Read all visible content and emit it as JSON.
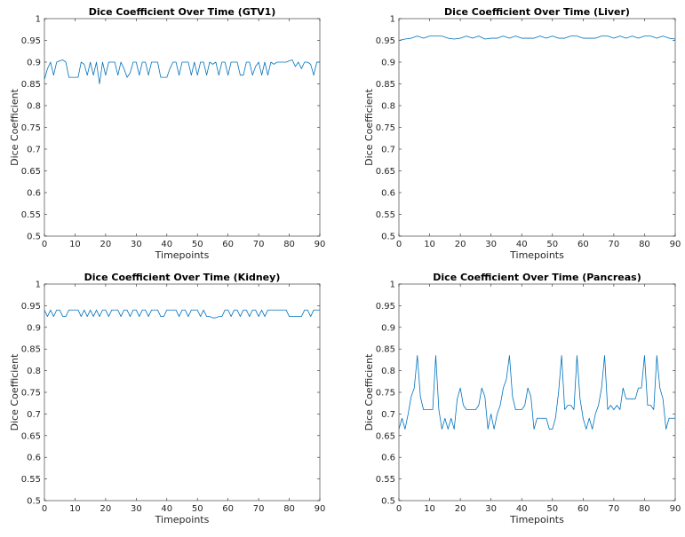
{
  "series_color": "#0072BD",
  "chart_data": [
    {
      "type": "line",
      "title": "Dice Coefficient Over Time (GTV1)",
      "xlabel": "Timepoints",
      "ylabel": "Dice Coefficient",
      "xlim": [
        0,
        90
      ],
      "ylim": [
        0.5,
        1
      ],
      "xticks": [
        "0",
        "10",
        "20",
        "30",
        "40",
        "50",
        "60",
        "70",
        "80",
        "90"
      ],
      "yticks": [
        "0.5",
        "0.55",
        "0.6",
        "0.65",
        "0.7",
        "0.75",
        "0.8",
        "0.85",
        "0.9",
        "0.95",
        "1"
      ],
      "x": [
        0,
        1,
        2,
        3,
        4,
        5,
        6,
        7,
        8,
        9,
        10,
        11,
        12,
        13,
        14,
        15,
        16,
        17,
        18,
        19,
        20,
        21,
        22,
        23,
        24,
        25,
        26,
        27,
        28,
        29,
        30,
        31,
        32,
        33,
        34,
        35,
        36,
        37,
        38,
        39,
        40,
        41,
        42,
        43,
        44,
        45,
        46,
        47,
        48,
        49,
        50,
        51,
        52,
        53,
        54,
        55,
        56,
        57,
        58,
        59,
        60,
        61,
        62,
        63,
        64,
        65,
        66,
        67,
        68,
        69,
        70,
        71,
        72,
        73,
        74,
        75,
        76,
        77,
        78,
        79,
        80,
        81,
        82,
        83,
        84,
        85,
        86,
        87,
        88,
        89,
        90
      ],
      "values": [
        0.86,
        0.885,
        0.9,
        0.87,
        0.9,
        0.903,
        0.905,
        0.9,
        0.865,
        0.865,
        0.865,
        0.865,
        0.9,
        0.895,
        0.87,
        0.9,
        0.87,
        0.9,
        0.85,
        0.9,
        0.87,
        0.9,
        0.9,
        0.9,
        0.87,
        0.9,
        0.885,
        0.865,
        0.875,
        0.9,
        0.9,
        0.87,
        0.9,
        0.9,
        0.87,
        0.9,
        0.9,
        0.9,
        0.865,
        0.865,
        0.865,
        0.885,
        0.9,
        0.9,
        0.87,
        0.9,
        0.9,
        0.9,
        0.87,
        0.9,
        0.87,
        0.9,
        0.9,
        0.87,
        0.9,
        0.895,
        0.9,
        0.87,
        0.9,
        0.9,
        0.87,
        0.9,
        0.9,
        0.9,
        0.87,
        0.87,
        0.9,
        0.9,
        0.87,
        0.89,
        0.9,
        0.87,
        0.9,
        0.87,
        0.9,
        0.895,
        0.9,
        0.9,
        0.9,
        0.9,
        0.903,
        0.905,
        0.89,
        0.9,
        0.885,
        0.9,
        0.9,
        0.895,
        0.87,
        0.9,
        0.9
      ]
    },
    {
      "type": "line",
      "title": "Dice Coefficient Over Time (Liver)",
      "xlabel": "Timepoints",
      "ylabel": "Dice Coefficient",
      "xlim": [
        0,
        90
      ],
      "ylim": [
        0.5,
        1
      ],
      "xticks": [
        "0",
        "10",
        "20",
        "30",
        "40",
        "50",
        "60",
        "70",
        "80",
        "90"
      ],
      "yticks": [
        "0.5",
        "0.55",
        "0.6",
        "0.65",
        "0.7",
        "0.75",
        "0.8",
        "0.85",
        "0.9",
        "0.95",
        "1"
      ],
      "x": [
        0,
        2,
        4,
        6,
        8,
        10,
        12,
        14,
        16,
        18,
        20,
        22,
        24,
        26,
        28,
        30,
        32,
        34,
        36,
        38,
        40,
        42,
        44,
        46,
        48,
        50,
        52,
        54,
        56,
        58,
        60,
        62,
        64,
        66,
        68,
        70,
        72,
        74,
        76,
        78,
        80,
        82,
        84,
        86,
        88,
        90
      ],
      "values": [
        0.95,
        0.953,
        0.955,
        0.96,
        0.955,
        0.96,
        0.96,
        0.96,
        0.955,
        0.953,
        0.955,
        0.96,
        0.955,
        0.96,
        0.953,
        0.955,
        0.955,
        0.96,
        0.955,
        0.96,
        0.955,
        0.955,
        0.955,
        0.96,
        0.955,
        0.96,
        0.955,
        0.955,
        0.96,
        0.96,
        0.955,
        0.955,
        0.955,
        0.96,
        0.96,
        0.955,
        0.96,
        0.955,
        0.96,
        0.955,
        0.96,
        0.96,
        0.955,
        0.96,
        0.955,
        0.953
      ]
    },
    {
      "type": "line",
      "title": "Dice Coefficient Over Time (Kidney)",
      "xlabel": "Timepoints",
      "ylabel": "Dice Coefficient",
      "xlim": [
        0,
        90
      ],
      "ylim": [
        0.5,
        1
      ],
      "xticks": [
        "0",
        "10",
        "20",
        "30",
        "40",
        "50",
        "60",
        "70",
        "80",
        "90"
      ],
      "yticks": [
        "0.5",
        "0.55",
        "0.6",
        "0.65",
        "0.7",
        "0.75",
        "0.8",
        "0.85",
        "0.9",
        "0.95",
        "1"
      ],
      "x": [
        0,
        1,
        2,
        3,
        4,
        5,
        6,
        7,
        8,
        9,
        10,
        11,
        12,
        13,
        14,
        15,
        16,
        17,
        18,
        19,
        20,
        21,
        22,
        23,
        24,
        25,
        26,
        27,
        28,
        29,
        30,
        31,
        32,
        33,
        34,
        35,
        36,
        37,
        38,
        39,
        40,
        41,
        42,
        43,
        44,
        45,
        46,
        47,
        48,
        49,
        50,
        51,
        52,
        53,
        54,
        55,
        56,
        57,
        58,
        59,
        60,
        61,
        62,
        63,
        64,
        65,
        66,
        67,
        68,
        69,
        70,
        71,
        72,
        73,
        74,
        75,
        76,
        77,
        78,
        79,
        80,
        81,
        82,
        83,
        84,
        85,
        86,
        87,
        88,
        89,
        90
      ],
      "values": [
        0.94,
        0.925,
        0.94,
        0.925,
        0.94,
        0.94,
        0.925,
        0.925,
        0.94,
        0.94,
        0.94,
        0.94,
        0.925,
        0.94,
        0.925,
        0.94,
        0.925,
        0.94,
        0.925,
        0.94,
        0.94,
        0.925,
        0.94,
        0.94,
        0.94,
        0.925,
        0.94,
        0.94,
        0.925,
        0.94,
        0.94,
        0.925,
        0.94,
        0.94,
        0.925,
        0.94,
        0.94,
        0.94,
        0.925,
        0.925,
        0.94,
        0.94,
        0.94,
        0.94,
        0.925,
        0.94,
        0.94,
        0.925,
        0.94,
        0.94,
        0.94,
        0.925,
        0.94,
        0.925,
        0.925,
        0.922,
        0.922,
        0.925,
        0.925,
        0.94,
        0.94,
        0.925,
        0.94,
        0.94,
        0.925,
        0.94,
        0.94,
        0.925,
        0.94,
        0.94,
        0.925,
        0.94,
        0.925,
        0.94,
        0.94,
        0.94,
        0.94,
        0.94,
        0.94,
        0.94,
        0.925,
        0.925,
        0.925,
        0.925,
        0.925,
        0.94,
        0.94,
        0.925,
        0.94,
        0.94,
        0.94
      ]
    },
    {
      "type": "line",
      "title": "Dice Coefficient Over Time (Pancreas)",
      "xlabel": "Timepoints",
      "ylabel": "Dice Coefficient",
      "xlim": [
        0,
        90
      ],
      "ylim": [
        0.5,
        1
      ],
      "xticks": [
        "0",
        "10",
        "20",
        "30",
        "40",
        "50",
        "60",
        "70",
        "80",
        "90"
      ],
      "yticks": [
        "0.5",
        "0.55",
        "0.6",
        "0.65",
        "0.7",
        "0.75",
        "0.8",
        "0.85",
        "0.9",
        "0.95",
        "1"
      ],
      "x": [
        0,
        1,
        2,
        3,
        4,
        5,
        6,
        7,
        8,
        9,
        10,
        11,
        12,
        13,
        14,
        15,
        16,
        17,
        18,
        19,
        20,
        21,
        22,
        23,
        24,
        25,
        26,
        27,
        28,
        29,
        30,
        31,
        32,
        33,
        34,
        35,
        36,
        37,
        38,
        39,
        40,
        41,
        42,
        43,
        44,
        45,
        46,
        47,
        48,
        49,
        50,
        51,
        52,
        53,
        54,
        55,
        56,
        57,
        58,
        59,
        60,
        61,
        62,
        63,
        64,
        65,
        66,
        67,
        68,
        69,
        70,
        71,
        72,
        73,
        74,
        75,
        76,
        77,
        78,
        79,
        80,
        81,
        82,
        83,
        84,
        85,
        86,
        87,
        88,
        89,
        90
      ],
      "values": [
        0.665,
        0.69,
        0.665,
        0.7,
        0.74,
        0.76,
        0.835,
        0.74,
        0.71,
        0.71,
        0.71,
        0.71,
        0.835,
        0.71,
        0.665,
        0.69,
        0.665,
        0.69,
        0.665,
        0.735,
        0.76,
        0.72,
        0.71,
        0.71,
        0.71,
        0.71,
        0.72,
        0.76,
        0.74,
        0.665,
        0.7,
        0.665,
        0.7,
        0.72,
        0.76,
        0.78,
        0.835,
        0.74,
        0.71,
        0.71,
        0.71,
        0.72,
        0.76,
        0.74,
        0.665,
        0.69,
        0.69,
        0.69,
        0.69,
        0.665,
        0.665,
        0.69,
        0.75,
        0.835,
        0.71,
        0.72,
        0.72,
        0.71,
        0.835,
        0.735,
        0.69,
        0.665,
        0.69,
        0.665,
        0.7,
        0.72,
        0.76,
        0.835,
        0.71,
        0.72,
        0.71,
        0.72,
        0.71,
        0.76,
        0.735,
        0.735,
        0.735,
        0.735,
        0.76,
        0.76,
        0.835,
        0.72,
        0.72,
        0.71,
        0.835,
        0.76,
        0.735,
        0.665,
        0.69,
        0.69,
        0.69
      ]
    }
  ]
}
